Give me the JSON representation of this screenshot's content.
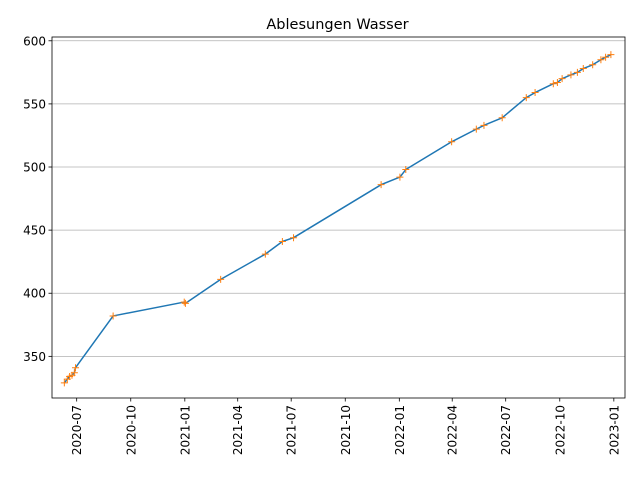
{
  "chart_data": {
    "type": "line",
    "title": "Ablesungen Wasser",
    "xlabel": "",
    "ylabel": "",
    "x_axis": {
      "type": "date",
      "range": [
        "2020-05-20",
        "2023-01-20"
      ],
      "ticks": [
        "2020-07-01",
        "2020-10-01",
        "2021-01-01",
        "2021-04-01",
        "2021-07-01",
        "2021-10-01",
        "2022-01-01",
        "2022-04-01",
        "2022-07-01",
        "2022-10-01",
        "2023-01-01"
      ],
      "tick_labels": [
        "2020-07",
        "2020-10",
        "2021-01",
        "2021-04",
        "2021-07",
        "2021-10",
        "2022-01",
        "2022-04",
        "2022-07",
        "2022-10",
        "2023-01"
      ],
      "tick_label_rotation": "vertical"
    },
    "y_axis": {
      "range": [
        317,
        603
      ],
      "ticks": [
        350,
        400,
        450,
        500,
        550,
        600
      ],
      "tick_labels": [
        "350",
        "400",
        "450",
        "500",
        "550",
        "600"
      ]
    },
    "grid": "horizontal",
    "series": [
      {
        "color": "#1f77b4",
        "marker": "+",
        "marker_color": "#ff7f0e",
        "points": [
          {
            "x": "2020-06-10",
            "y": 329
          },
          {
            "x": "2020-06-15",
            "y": 332
          },
          {
            "x": "2020-06-19",
            "y": 334
          },
          {
            "x": "2020-06-23",
            "y": 335
          },
          {
            "x": "2020-06-27",
            "y": 337
          },
          {
            "x": "2020-06-29",
            "y": 341
          },
          {
            "x": "2020-09-01",
            "y": 382
          },
          {
            "x": "2020-12-31",
            "y": 393
          },
          {
            "x": "2021-01-02",
            "y": 392
          },
          {
            "x": "2021-03-03",
            "y": 411
          },
          {
            "x": "2021-05-18",
            "y": 431
          },
          {
            "x": "2021-06-16",
            "y": 441
          },
          {
            "x": "2021-07-05",
            "y": 444
          },
          {
            "x": "2021-12-01",
            "y": 486
          },
          {
            "x": "2022-01-02",
            "y": 492
          },
          {
            "x": "2022-01-12",
            "y": 498
          },
          {
            "x": "2022-03-31",
            "y": 520
          },
          {
            "x": "2022-05-12",
            "y": 530
          },
          {
            "x": "2022-05-25",
            "y": 533
          },
          {
            "x": "2022-06-25",
            "y": 539
          },
          {
            "x": "2022-08-05",
            "y": 555
          },
          {
            "x": "2022-08-20",
            "y": 559
          },
          {
            "x": "2022-09-20",
            "y": 566
          },
          {
            "x": "2022-09-27",
            "y": 567
          },
          {
            "x": "2022-10-05",
            "y": 570
          },
          {
            "x": "2022-10-20",
            "y": 573
          },
          {
            "x": "2022-10-31",
            "y": 575
          },
          {
            "x": "2022-11-10",
            "y": 578
          },
          {
            "x": "2022-11-26",
            "y": 581
          },
          {
            "x": "2022-12-10",
            "y": 585
          },
          {
            "x": "2022-12-18",
            "y": 587
          },
          {
            "x": "2022-12-27",
            "y": 589
          }
        ]
      }
    ]
  }
}
